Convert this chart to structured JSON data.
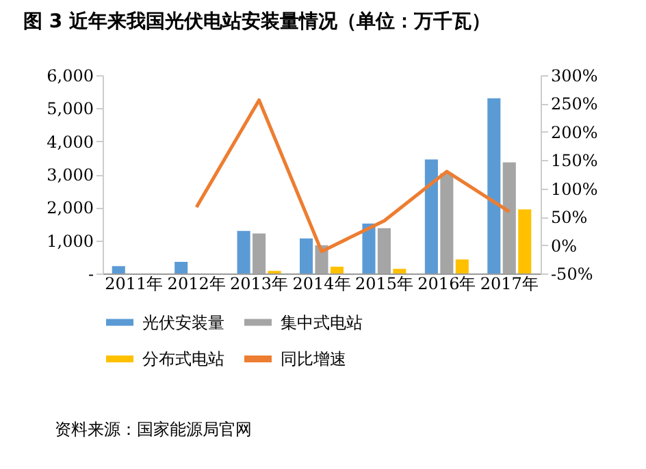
{
  "chart_data": {
    "type": "bar",
    "title": "图 3    近年来我国光伏电站安装量情况（单位：万千瓦）",
    "categories": [
      "2011年",
      "2012年",
      "2013年",
      "2014年",
      "2015年",
      "2016年",
      "2017年"
    ],
    "series": [
      {
        "name": "光伏安装量",
        "color": "#5b9bd5",
        "values": [
          220,
          350,
          1290,
          1060,
          1510,
          3450,
          5300
        ]
      },
      {
        "name": "集中式电站",
        "color": "#a5a5a5",
        "values": [
          null,
          null,
          1210,
          855,
          1370,
          3030,
          3360
        ]
      },
      {
        "name": "分布式电站",
        "color": "#ffc000",
        "values": [
          null,
          null,
          80,
          205,
          140,
          425,
          1940
        ]
      },
      {
        "name": "同比增速",
        "color": "#ed7d31",
        "type": "line",
        "axis": "y2",
        "values": [
          null,
          67,
          256,
          -11,
          43,
          130,
          59
        ]
      }
    ],
    "ylim": [
      0,
      6000
    ],
    "yticks": [
      {
        "value": 0,
        "label": "-"
      },
      {
        "value": 1000,
        "label": "1,000"
      },
      {
        "value": 2000,
        "label": "2,000"
      },
      {
        "value": 3000,
        "label": "3,000"
      },
      {
        "value": 4000,
        "label": "4,000"
      },
      {
        "value": 5000,
        "label": "5,000"
      },
      {
        "value": 6000,
        "label": "6,000"
      }
    ],
    "y2lim": [
      -50,
      300
    ],
    "y2ticks": [
      {
        "value": -50,
        "label": "-50%"
      },
      {
        "value": 0,
        "label": "0%"
      },
      {
        "value": 50,
        "label": "50%"
      },
      {
        "value": 100,
        "label": "100%"
      },
      {
        "value": 150,
        "label": "150%"
      },
      {
        "value": 200,
        "label": "200%"
      },
      {
        "value": 250,
        "label": "250%"
      },
      {
        "value": 300,
        "label": "300%"
      }
    ],
    "legend": "bottom",
    "annotations": [
      "资料来源：国家能源局官网"
    ]
  }
}
